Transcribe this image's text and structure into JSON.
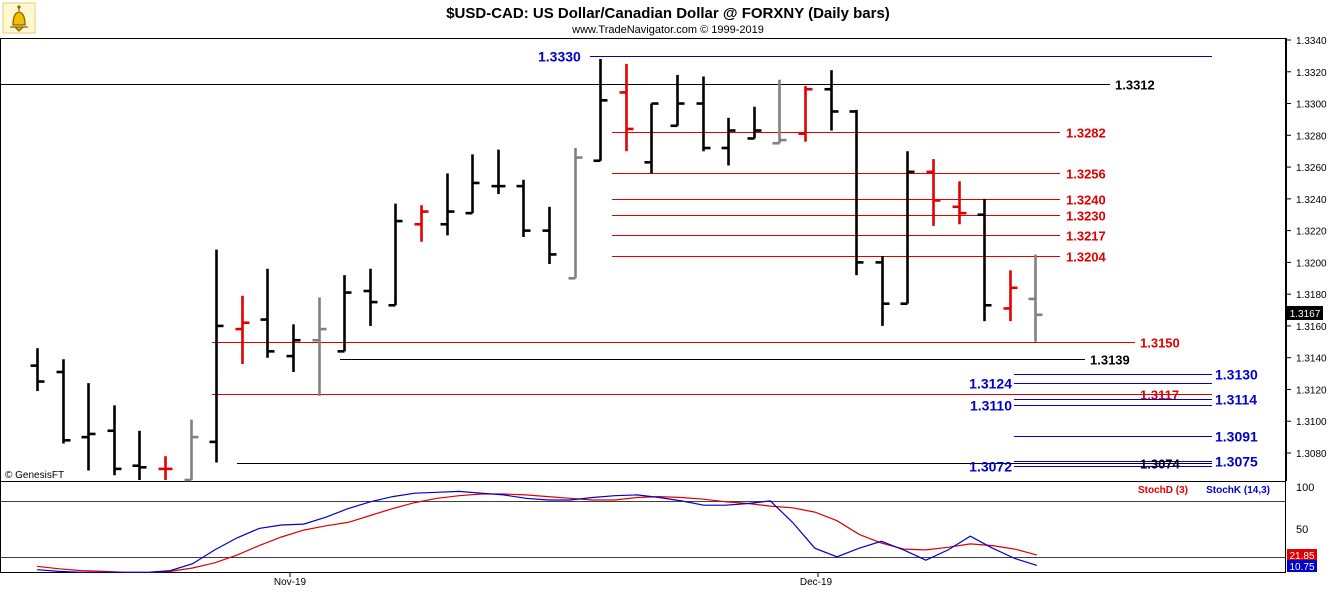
{
  "header": {
    "title": "$USD-CAD:  US Dollar/Canadian Dollar @ FORXNY  (Daily bars)",
    "subtitle": "www.TradeNavigator.com © 1999-2019",
    "credit": "© GenesisFT"
  },
  "colors": {
    "up_bar": "#000000",
    "down_bar": "#e00000",
    "neutral_bar": "#808080",
    "blue_level": "#0000cc",
    "red_level": "#e00000",
    "black_level": "#000000",
    "stoch_d": "#e00000",
    "stoch_k": "#0000cc"
  },
  "logo": {
    "icon": "genesis-bell-logo-icon"
  },
  "chart_data": [
    {
      "type": "ohlc",
      "title": "$USD-CAD:  US Dollar/Canadian Dollar @ FORXNY  (Daily bars)",
      "ylim": [
        1.305,
        1.3345
      ],
      "yticks": [
        "1.3080",
        "1.3100",
        "1.3120",
        "1.3140",
        "1.3160",
        "1.3180",
        "1.3200",
        "1.3220",
        "1.3240",
        "1.3260",
        "1.3280",
        "1.3300",
        "1.3320",
        "1.3340"
      ],
      "xlabels": [
        "Nov-19",
        "Dec-19"
      ],
      "last_price": "1.3167",
      "bars": [
        {
          "o": 1.3135,
          "h": 1.3146,
          "l": 1.3119,
          "c": 1.3125,
          "col": "black"
        },
        {
          "o": 1.3131,
          "h": 1.3139,
          "l": 1.3086,
          "c": 1.3088,
          "col": "black"
        },
        {
          "o": 1.309,
          "h": 1.3124,
          "l": 1.3069,
          "c": 1.3092,
          "col": "black"
        },
        {
          "o": 1.3094,
          "h": 1.311,
          "l": 1.3066,
          "c": 1.307,
          "col": "black"
        },
        {
          "o": 1.3072,
          "h": 1.3094,
          "l": 1.3055,
          "c": 1.3071,
          "col": "black"
        },
        {
          "o": 1.307,
          "h": 1.3078,
          "l": 1.3055,
          "c": 1.307,
          "col": "red"
        },
        {
          "o": 1.306,
          "h": 1.3101,
          "l": 1.3055,
          "c": 1.309,
          "col": "gray"
        },
        {
          "o": 1.3087,
          "h": 1.3208,
          "l": 1.3074,
          "c": 1.316,
          "col": "black"
        },
        {
          "o": 1.3158,
          "h": 1.3179,
          "l": 1.3136,
          "c": 1.3162,
          "col": "red"
        },
        {
          "o": 1.3164,
          "h": 1.3196,
          "l": 1.314,
          "c": 1.3144,
          "col": "black"
        },
        {
          "o": 1.3141,
          "h": 1.3161,
          "l": 1.3131,
          "c": 1.3151,
          "col": "black"
        },
        {
          "o": 1.3151,
          "h": 1.3178,
          "l": 1.3116,
          "c": 1.3158,
          "col": "gray"
        },
        {
          "o": 1.3144,
          "h": 1.3192,
          "l": 1.3144,
          "c": 1.3181,
          "col": "black"
        },
        {
          "o": 1.3182,
          "h": 1.3196,
          "l": 1.316,
          "c": 1.3175,
          "col": "black"
        },
        {
          "o": 1.3173,
          "h": 1.3237,
          "l": 1.3173,
          "c": 1.3226,
          "col": "black"
        },
        {
          "o": 1.3224,
          "h": 1.3236,
          "l": 1.3213,
          "c": 1.3232,
          "col": "red"
        },
        {
          "o": 1.3224,
          "h": 1.3256,
          "l": 1.3217,
          "c": 1.3232,
          "col": "black"
        },
        {
          "o": 1.3231,
          "h": 1.3268,
          "l": 1.3231,
          "c": 1.325,
          "col": "black"
        },
        {
          "o": 1.3248,
          "h": 1.3271,
          "l": 1.3243,
          "c": 1.3248,
          "col": "black"
        },
        {
          "o": 1.3248,
          "h": 1.3252,
          "l": 1.3216,
          "c": 1.322,
          "col": "black"
        },
        {
          "o": 1.322,
          "h": 1.3235,
          "l": 1.3199,
          "c": 1.3205,
          "col": "black"
        },
        {
          "o": 1.319,
          "h": 1.3272,
          "l": 1.319,
          "c": 1.3266,
          "col": "gray"
        },
        {
          "o": 1.3264,
          "h": 1.3328,
          "l": 1.3264,
          "c": 1.3302,
          "col": "black"
        },
        {
          "o": 1.3307,
          "h": 1.3325,
          "l": 1.327,
          "c": 1.3284,
          "col": "red"
        },
        {
          "o": 1.3263,
          "h": 1.33,
          "l": 1.3256,
          "c": 1.33,
          "col": "black"
        },
        {
          "o": 1.3286,
          "h": 1.3318,
          "l": 1.3286,
          "c": 1.33,
          "col": "black"
        },
        {
          "o": 1.33,
          "h": 1.3317,
          "l": 1.327,
          "c": 1.3272,
          "col": "black"
        },
        {
          "o": 1.3272,
          "h": 1.3291,
          "l": 1.3261,
          "c": 1.3283,
          "col": "black"
        },
        {
          "o": 1.3278,
          "h": 1.3298,
          "l": 1.3278,
          "c": 1.3283,
          "col": "black"
        },
        {
          "o": 1.3275,
          "h": 1.3315,
          "l": 1.3275,
          "c": 1.3277,
          "col": "gray"
        },
        {
          "o": 1.3281,
          "h": 1.3311,
          "l": 1.3276,
          "c": 1.3309,
          "col": "red"
        },
        {
          "o": 1.3309,
          "h": 1.3321,
          "l": 1.3283,
          "c": 1.3295,
          "col": "black"
        },
        {
          "o": 1.3295,
          "h": 1.3296,
          "l": 1.3192,
          "c": 1.32,
          "col": "black"
        },
        {
          "o": 1.32,
          "h": 1.3204,
          "l": 1.316,
          "c": 1.3174,
          "col": "black"
        },
        {
          "o": 1.3174,
          "h": 1.327,
          "l": 1.3174,
          "c": 1.3257,
          "col": "black"
        },
        {
          "o": 1.3257,
          "h": 1.3265,
          "l": 1.3223,
          "c": 1.3239,
          "col": "red"
        },
        {
          "o": 1.3235,
          "h": 1.3251,
          "l": 1.3224,
          "c": 1.3231,
          "col": "red"
        },
        {
          "o": 1.323,
          "h": 1.324,
          "l": 1.3163,
          "c": 1.3173,
          "col": "black"
        },
        {
          "o": 1.3171,
          "h": 1.3195,
          "l": 1.3163,
          "c": 1.3184,
          "col": "red"
        },
        {
          "o": 1.3177,
          "h": 1.3205,
          "l": 1.315,
          "c": 1.3167,
          "col": "gray"
        }
      ],
      "levels": [
        {
          "label": "1.3330",
          "value": 1.333,
          "color": "blue",
          "from": "1.3330 label",
          "to": "right",
          "label_side": "left"
        },
        {
          "label": "1.3312",
          "value": 1.3312,
          "color": "black",
          "label_side": "right"
        },
        {
          "label": "1.3282",
          "value": 1.3282,
          "color": "red",
          "label_side": "right"
        },
        {
          "label": "1.3256",
          "value": 1.3256,
          "color": "red",
          "label_side": "right"
        },
        {
          "label": "1.3240",
          "value": 1.324,
          "color": "red",
          "label_side": "right"
        },
        {
          "label": "1.3230",
          "value": 1.323,
          "color": "red",
          "label_side": "right"
        },
        {
          "label": "1.3217",
          "value": 1.3217,
          "color": "red",
          "label_side": "right"
        },
        {
          "label": "1.3204",
          "value": 1.3204,
          "color": "red",
          "label_side": "right"
        },
        {
          "label": "1.3150",
          "value": 1.315,
          "color": "red",
          "label_side": "right"
        },
        {
          "label": "1.3139",
          "value": 1.3139,
          "color": "black",
          "label_side": "right"
        },
        {
          "label": "1.3130",
          "value": 1.313,
          "color": "blue",
          "label_side": "right"
        },
        {
          "label": "1.3124",
          "value": 1.3124,
          "color": "blue",
          "label_side": "left"
        },
        {
          "label": "1.3117",
          "value": 1.3117,
          "color": "red",
          "label_side": "right"
        },
        {
          "label": "1.3114",
          "value": 1.3114,
          "color": "blue",
          "label_side": "right"
        },
        {
          "label": "1.3110",
          "value": 1.311,
          "color": "blue",
          "label_side": "left"
        },
        {
          "label": "1.3091",
          "value": 1.3091,
          "color": "blue",
          "label_side": "right"
        },
        {
          "label": "1.3075",
          "value": 1.3075,
          "color": "blue",
          "label_side": "right"
        },
        {
          "label": "1.3074",
          "value": 1.3074,
          "color": "black",
          "label_side": "right"
        },
        {
          "label": "1.3072",
          "value": 1.3072,
          "color": "blue",
          "label_side": "left"
        }
      ]
    },
    {
      "type": "line",
      "ylim": [
        0,
        100
      ],
      "yticks": [
        "100",
        "50"
      ],
      "series": [
        {
          "name": "StochD (3)",
          "color": "red",
          "last_value": "21.85",
          "values": [
            9,
            6,
            4,
            3,
            2,
            2,
            3,
            7,
            13,
            22,
            33,
            43,
            51,
            56,
            60,
            68,
            76,
            83,
            88,
            91,
            93,
            93,
            92,
            90,
            88,
            86,
            86,
            89,
            90,
            89,
            87,
            84,
            82,
            79,
            77,
            72,
            62,
            46,
            36,
            29,
            28,
            31,
            35,
            33,
            29,
            22
          ]
        },
        {
          "name": "StochK (14,3)",
          "color": "blue",
          "last_value": "10.75",
          "values": [
            5,
            3,
            2,
            2,
            2,
            2,
            4,
            12,
            28,
            42,
            53,
            57,
            58,
            66,
            76,
            84,
            90,
            94,
            95,
            96,
            94,
            92,
            88,
            86,
            86,
            89,
            91,
            92,
            89,
            85,
            80,
            80,
            82,
            85,
            60,
            30,
            20,
            30,
            38,
            28,
            16,
            28,
            44,
            30,
            18,
            10
          ]
        }
      ]
    }
  ]
}
